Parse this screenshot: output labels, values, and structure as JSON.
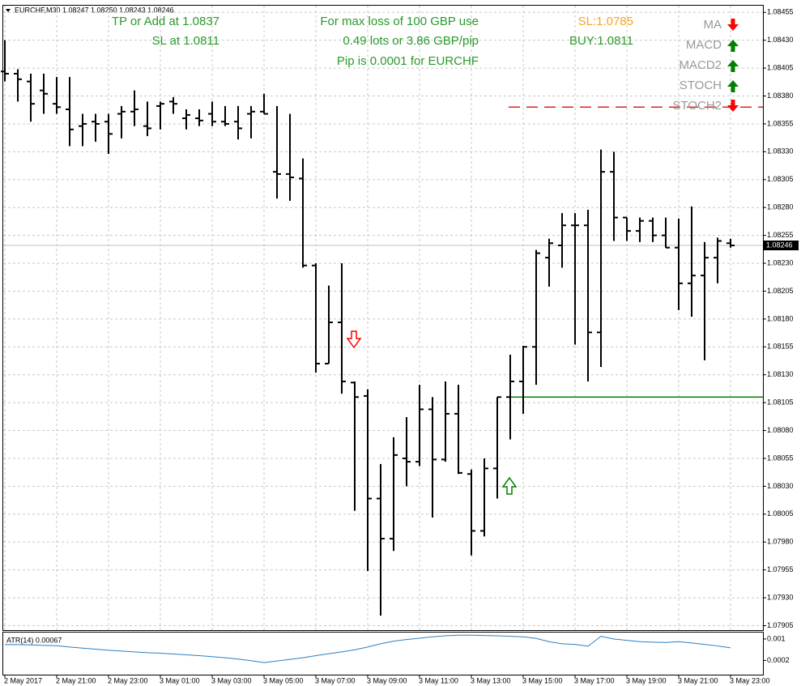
{
  "chart_data": [
    {
      "type": "ohlc",
      "title": "EURCHF,M30  1.08247 1.08250 1.08243 1.08246",
      "categories": [
        "2 May 2017",
        null,
        null,
        null,
        "2 May 21:00",
        null,
        null,
        null,
        "2 May 23:00",
        null,
        null,
        null,
        "3 May 01:00",
        null,
        null,
        null,
        "3 May 03:00",
        null,
        null,
        null,
        "3 May 05:00",
        null,
        null,
        null,
        "3 May 07:00",
        null,
        null,
        null,
        "3 May 09:00",
        null,
        null,
        null,
        "3 May 11:00",
        null,
        null,
        null,
        "3 May 13:00",
        null,
        null,
        null,
        "3 May 15:00",
        null,
        null,
        null,
        "3 May 17:00",
        null,
        null,
        null,
        "3 May 19:00",
        null,
        null,
        null,
        "3 May 21:00",
        null,
        null,
        null,
        "3 May 23:00"
      ],
      "open": [
        1.08402,
        1.084,
        1.08393,
        1.08385,
        1.08373,
        1.08368,
        1.08353,
        1.08357,
        1.08357,
        1.08364,
        1.08366,
        1.08353,
        1.08371,
        1.08375,
        1.0836,
        1.0836,
        1.08364,
        1.08357,
        1.08357,
        1.08364,
        1.08366,
        1.08312,
        1.0831,
        1.08306,
        1.08228,
        1.0814,
        1.08177,
        1.08123,
        1.08111,
        1.08019,
        1.07983,
        1.08055,
        1.08052,
        1.08099,
        1.08054,
        1.08095,
        1.08041,
        1.0799,
        1.08046,
        1.0811,
        1.08124,
        1.08155,
        1.08235,
        1.08246,
        1.08264,
        1.08264,
        1.08168,
        1.08312,
        1.08271,
        1.08259,
        1.08268,
        1.08255,
        1.08244,
        1.08212,
        1.08219,
        1.08235,
        1.08248
      ],
      "high": [
        1.0843,
        1.08404,
        1.084,
        1.084,
        1.08397,
        1.08397,
        1.08364,
        1.08364,
        1.08364,
        1.08371,
        1.08385,
        1.08375,
        1.08375,
        1.08379,
        1.08368,
        1.08368,
        1.08375,
        1.08371,
        1.08371,
        1.08371,
        1.08382,
        1.08371,
        1.08364,
        1.08324,
        1.0823,
        1.0821,
        1.0823,
        1.08124,
        1.08117,
        1.0805,
        1.08074,
        1.08092,
        1.08121,
        1.0811,
        1.08124,
        1.08121,
        1.08045,
        1.08055,
        1.0811,
        1.08148,
        1.08156,
        1.08242,
        1.08252,
        1.08275,
        1.08275,
        1.08278,
        1.08332,
        1.0833,
        1.08271,
        1.08271,
        1.08271,
        1.08271,
        1.0827,
        1.08281,
        1.08249,
        1.08253,
        1.08252
      ],
      "low": [
        1.08393,
        1.08375,
        1.08357,
        1.08364,
        1.08364,
        1.08335,
        1.08335,
        1.08339,
        1.08328,
        1.08342,
        1.08353,
        1.08344,
        1.0835,
        1.08364,
        1.0835,
        1.08353,
        1.08353,
        1.08353,
        1.08341,
        1.08342,
        1.08364,
        1.08288,
        1.08286,
        1.08226,
        1.08132,
        1.0814,
        1.08113,
        1.08008,
        1.07954,
        1.07914,
        1.07972,
        1.0803,
        1.08048,
        1.08002,
        1.08052,
        1.08041,
        1.07968,
        1.07985,
        1.08019,
        1.08072,
        1.08095,
        1.08121,
        1.08209,
        1.08226,
        1.08157,
        1.08124,
        1.08137,
        1.0825,
        1.0825,
        1.08249,
        1.08249,
        1.08244,
        1.08188,
        1.08182,
        1.08143,
        1.08212,
        1.08244
      ],
      "close": [
        1.084,
        1.08395,
        1.08373,
        1.08382,
        1.0837,
        1.0835,
        1.08355,
        1.08355,
        1.08346,
        1.08366,
        1.08368,
        1.08351,
        1.08373,
        1.08373,
        1.08363,
        1.08358,
        1.08357,
        1.08355,
        1.08351,
        1.08366,
        1.08364,
        1.0831,
        1.08307,
        1.08228,
        1.0814,
        1.08177,
        1.08124,
        1.0811,
        1.08019,
        1.07983,
        1.08058,
        1.08052,
        1.08099,
        1.08054,
        1.08095,
        1.08042,
        1.0799,
        1.08046,
        1.0811,
        1.08124,
        1.08155,
        1.08239,
        1.08248,
        1.08264,
        1.08264,
        1.08168,
        1.08312,
        1.08271,
        1.08259,
        1.08268,
        1.08255,
        1.08244,
        1.08212,
        1.08219,
        1.08235,
        1.0825,
        1.08246
      ],
      "color": "#000000",
      "ylim": [
        1.07901,
        1.08461
      ],
      "yticks": [
        1.08455,
        {
          "value": 1.0843,
          "label": "1.08430"
        },
        1.08405,
        {
          "value": 1.0838,
          "label": "1.08380"
        },
        1.08355,
        {
          "value": 1.0833,
          "label": "1.08330"
        },
        1.08305,
        {
          "value": 1.0828,
          "label": "1.08280"
        },
        1.08255,
        {
          "value": 1.0823,
          "label": "1.08230"
        },
        1.08205,
        {
          "value": 1.0818,
          "label": "1.08180"
        },
        1.08155,
        {
          "value": 1.0813,
          "label": "1.08130"
        },
        1.08105,
        {
          "value": 1.0808,
          "label": "1.08080"
        },
        1.08055,
        {
          "value": 1.0803,
          "label": "1.08030"
        },
        1.08005,
        {
          "value": 1.0798,
          "label": "1.07980"
        },
        1.07955,
        {
          "value": 1.0793,
          "label": "1.07930"
        },
        1.07905
      ],
      "grid": true,
      "last_price": 1.08246,
      "hlines": [
        {
          "value": 1.0811,
          "color": "#008000",
          "style": "solid"
        },
        {
          "value": 1.0837,
          "color": "#e02020",
          "style": "dashed"
        }
      ],
      "signal_arrows": [
        {
          "index": 27,
          "value": 1.08161,
          "direction": "down",
          "color": "#ff0000"
        },
        {
          "index": 39,
          "value": 1.08031,
          "direction": "up",
          "color": "#008000"
        }
      ],
      "annotations": [
        {
          "text": "TP or Add at 1.0837",
          "color": "#2a9a2a"
        },
        {
          "text": "SL at 1.0811",
          "color": "#2a9a2a"
        },
        {
          "text": "For max loss of 100 GBP use",
          "color": "#2a9a2a"
        },
        {
          "text": "0.49 lots or 3.86 GBP/pip",
          "color": "#2a9a2a"
        },
        {
          "text": "Pip is 0.0001 for EURCHF",
          "color": "#2a9a2a"
        },
        {
          "text": "SL:1.0785",
          "color": "#f5a623"
        },
        {
          "text": "BUY:1.0811",
          "color": "#2a9a2a"
        }
      ],
      "indicator_signals": [
        {
          "label": "MA",
          "direction": "down",
          "color": "#ff0000"
        },
        {
          "label": "MACD",
          "direction": "up",
          "color": "#008000"
        },
        {
          "label": "MACD2",
          "direction": "up",
          "color": "#008000"
        },
        {
          "label": "STOCH",
          "direction": "up",
          "color": "#008000"
        },
        {
          "label": "STOCH2",
          "direction": "down",
          "color": "#ff0000"
        }
      ]
    },
    {
      "type": "line",
      "title": "ATR(14) 0.00067",
      "values": [
        0.00079,
        0.00079,
        0.00078,
        0.00076,
        0.00075,
        0.0007,
        0.00066,
        0.00062,
        0.00058,
        0.00055,
        0.00052,
        0.00049,
        0.00047,
        0.00044,
        0.00041,
        0.00038,
        0.00034,
        0.0003,
        0.00025,
        0.00019,
        0.00012,
        0.00018,
        0.00024,
        0.0003,
        0.00038,
        0.00045,
        0.00052,
        0.0006,
        0.0007,
        0.00082,
        0.00092,
        0.00098,
        0.00103,
        0.00108,
        0.00112,
        0.00114,
        0.00114,
        0.00113,
        0.00112,
        0.0011,
        0.00108,
        0.00102,
        0.0009,
        0.00082,
        0.0008,
        0.00073,
        0.0011,
        0.001,
        0.00095,
        0.0009,
        0.00088,
        0.00087,
        0.0009,
        0.00085,
        0.0008,
        0.00074,
        0.00067
      ],
      "color": "#2b7fc0",
      "ylim": [
        -0.00033,
        0.00124
      ],
      "yticks": [
        0.001,
        0.0002
      ]
    }
  ]
}
